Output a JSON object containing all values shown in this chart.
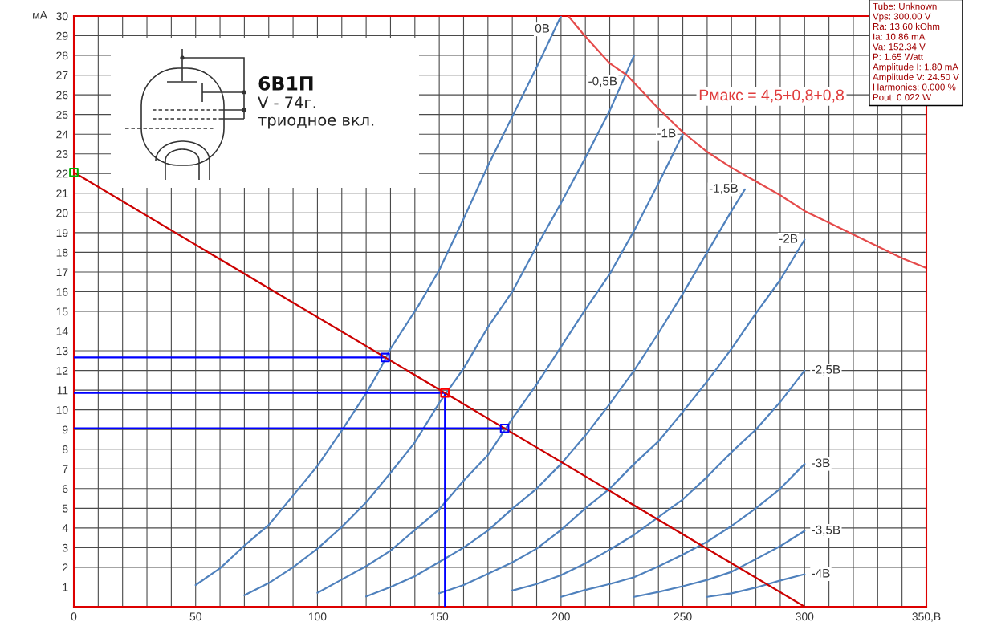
{
  "chart_data": {
    "type": "line",
    "title": "6В1П",
    "subtitle": "V - 74г.\nтриодное вкл.",
    "ylabel": "мА",
    "xlim": [
      0,
      350
    ],
    "ylim": [
      0,
      30
    ],
    "xticks": [
      0,
      {
        "value": 10,
        "label": null
      },
      {
        "value": 20,
        "label": null
      },
      {
        "value": 30,
        "label": null
      },
      {
        "value": 40,
        "label": null
      },
      50,
      {
        "value": 60,
        "label": null
      },
      {
        "value": 70,
        "label": null
      },
      {
        "value": 80,
        "label": null
      },
      {
        "value": 90,
        "label": null
      },
      100,
      {
        "value": 110,
        "label": null
      },
      {
        "value": 120,
        "label": null
      },
      {
        "value": 130,
        "label": null
      },
      {
        "value": 140,
        "label": null
      },
      150,
      {
        "value": 160,
        "label": null
      },
      {
        "value": 170,
        "label": null
      },
      {
        "value": 180,
        "label": null
      },
      {
        "value": 190,
        "label": null
      },
      200,
      {
        "value": 210,
        "label": null
      },
      {
        "value": 220,
        "label": null
      },
      {
        "value": 230,
        "label": null
      },
      {
        "value": 240,
        "label": null
      },
      250,
      {
        "value": 260,
        "label": null
      },
      {
        "value": 270,
        "label": null
      },
      {
        "value": 280,
        "label": null
      },
      {
        "value": 290,
        "label": null
      },
      300,
      {
        "value": 310,
        "label": null
      },
      {
        "value": 320,
        "label": null
      },
      {
        "value": 330,
        "label": null
      },
      {
        "value": 340,
        "label": null
      },
      {
        "value": 350,
        "label": "350,В"
      }
    ],
    "yticks": [
      1,
      2,
      3,
      4,
      5,
      6,
      7,
      8,
      9,
      10,
      11,
      12,
      13,
      14,
      15,
      16,
      17,
      18,
      19,
      20,
      21,
      22,
      23,
      24,
      25,
      26,
      27,
      28,
      29,
      30
    ],
    "grid": true,
    "series": [
      {
        "name": "0В",
        "color": "#4f81bd",
        "x": [
          50,
          60,
          70,
          80,
          90,
          100,
          110,
          120,
          125,
          130,
          141.5,
          150,
          160,
          170,
          180,
          190,
          200
        ],
        "values": [
          1.1,
          1.95,
          3.1,
          4.15,
          5.65,
          7.15,
          8.95,
          10.85,
          11.9,
          13.1,
          15.3,
          17.1,
          19.7,
          22.4,
          24.9,
          27.4,
          30.0
        ]
      },
      {
        "name": "-0,5В",
        "color": "#4f81bd",
        "x": [
          70,
          80,
          90,
          100,
          110,
          120,
          130,
          140,
          150,
          160,
          170,
          180,
          190,
          200,
          210,
          220,
          230
        ],
        "values": [
          0.58,
          1.2,
          2.0,
          2.95,
          4.05,
          5.3,
          6.8,
          8.35,
          10.35,
          12.1,
          14.2,
          16.0,
          18.3,
          20.5,
          22.8,
          25.2,
          28.0
        ]
      },
      {
        "name": "-1В",
        "color": "#4f81bd",
        "x": [
          100,
          110,
          120,
          130,
          140,
          150,
          160,
          170,
          180,
          190,
          200,
          210,
          220,
          230,
          240,
          250
        ],
        "values": [
          0.7,
          1.38,
          2.06,
          2.85,
          3.9,
          4.95,
          6.4,
          7.7,
          9.55,
          11.3,
          13.2,
          15.1,
          16.9,
          19.1,
          21.5,
          24.0
        ]
      },
      {
        "name": "-1,5В",
        "color": "#4f81bd",
        "x": [
          120,
          130,
          140,
          150,
          160,
          170,
          180,
          190,
          200,
          210,
          220,
          230,
          240,
          250,
          260,
          270,
          275.5
        ],
        "values": [
          0.52,
          1.0,
          1.55,
          2.27,
          3.0,
          3.87,
          4.98,
          6.0,
          7.25,
          8.7,
          10.3,
          12.0,
          13.9,
          15.9,
          18.0,
          20.1,
          21.2
        ]
      },
      {
        "name": "-2В",
        "color": "#4f81bd",
        "x": [
          150,
          160,
          170,
          180,
          190,
          200,
          210,
          220,
          230,
          240,
          250,
          260,
          270,
          280,
          290,
          300
        ],
        "values": [
          0.68,
          1.1,
          1.67,
          2.25,
          2.95,
          3.9,
          5.0,
          6.0,
          7.25,
          8.4,
          9.9,
          11.45,
          13.1,
          14.9,
          16.6,
          18.65
        ]
      },
      {
        "name": "-2,5В",
        "color": "#4f81bd",
        "x": [
          180,
          190,
          200,
          210,
          220,
          230,
          240,
          250,
          260,
          270,
          280,
          290,
          300
        ],
        "values": [
          0.82,
          1.15,
          1.6,
          2.2,
          2.9,
          3.65,
          4.55,
          5.45,
          6.6,
          7.85,
          9.0,
          10.4,
          12.0
        ]
      },
      {
        "name": "-3В",
        "color": "#4f81bd",
        "x": [
          200,
          210,
          220,
          230,
          240,
          250,
          260,
          270,
          280,
          290,
          300
        ],
        "values": [
          0.5,
          0.85,
          1.15,
          1.5,
          2.05,
          2.65,
          3.3,
          4.1,
          5.0,
          6.0,
          7.25
        ]
      },
      {
        "name": "-3,5В",
        "color": "#4f81bd",
        "x": [
          230,
          240,
          250,
          260,
          270,
          280,
          290,
          300
        ],
        "values": [
          0.5,
          0.75,
          1.04,
          1.36,
          1.77,
          2.42,
          3.08,
          3.85
        ]
      },
      {
        "name": "-4В",
        "color": "#4f81bd",
        "x": [
          260,
          270,
          280,
          290,
          300
        ],
        "values": [
          0.5,
          0.68,
          0.97,
          1.33,
          1.65
        ]
      },
      {
        "color": "#e54b4b",
        "x": [
          203,
          209,
          220,
          227,
          240,
          250,
          260,
          270,
          280,
          290,
          300,
          310,
          320,
          330,
          340,
          350
        ],
        "values": [
          30.0,
          29.1,
          27.6,
          27.0,
          25.3,
          24.1,
          23.1,
          22.3,
          21.6,
          20.9,
          20.1,
          19.5,
          18.9,
          18.3,
          17.7,
          17.2
        ]
      },
      {
        "color": "#0000ff",
        "x": [
          0,
          127.84
        ],
        "values": [
          12.66,
          12.66
        ]
      },
      {
        "color": "#0000ff",
        "x": [
          0,
          152.34,
          152.34
        ],
        "values": [
          10.86,
          10.86,
          0
        ]
      },
      {
        "color": "#0000ff",
        "x": [
          0,
          176.84
        ],
        "values": [
          9.06,
          9.06
        ]
      },
      {
        "color": "#cc0000",
        "x": [
          0,
          300
        ],
        "values": [
          22.06,
          0
        ]
      },
      {
        "type": "scatter",
        "marker": "square",
        "x": [
          0,
          127.84,
          152.34,
          176.84
        ],
        "values": [
          22.06,
          12.66,
          10.86,
          9.06
        ],
        "colors": [
          "#00b000",
          "#0000ff",
          "#ff0000",
          "#0000ff"
        ]
      }
    ],
    "annotations": [
      {
        "text": "Рмакс = 4,5+0,8+0,8",
        "x": 240,
        "y": 25.3
      },
      "Tube: Unknown",
      "Vps: 300.00 V",
      "Ra: 13.60 kOhm",
      "Ia: 10.86 mA",
      "Va: 152.34 V",
      "P: 1.65 Watt",
      "Amplitude I: 1.80 mA",
      "Amplitude V: 24.50 V",
      "Harmonics: 0.000 %",
      "Pout: 0.022 W"
    ]
  }
}
